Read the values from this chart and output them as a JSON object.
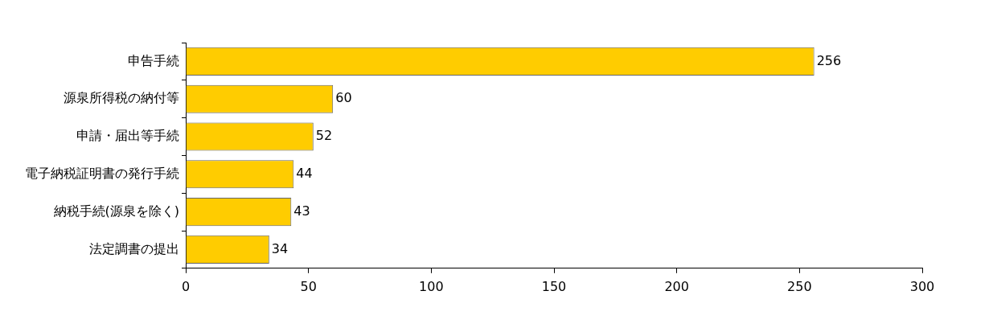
{
  "chart_data": {
    "type": "bar",
    "orientation": "horizontal",
    "categories": [
      "申告手続",
      "源泉所得税の納付等",
      "申請・届出等手続",
      "電子納税証明書の発行手続",
      "納税手続(源泉を除く)",
      "法定調書の提出"
    ],
    "values": [
      256,
      60,
      52,
      44,
      43,
      34
    ],
    "color": "#ffcc00",
    "xlim": [
      0,
      300
    ],
    "xticks": [
      0,
      50,
      100,
      150,
      200,
      250,
      300
    ],
    "grid": false,
    "legend": false,
    "data_labels": true
  }
}
